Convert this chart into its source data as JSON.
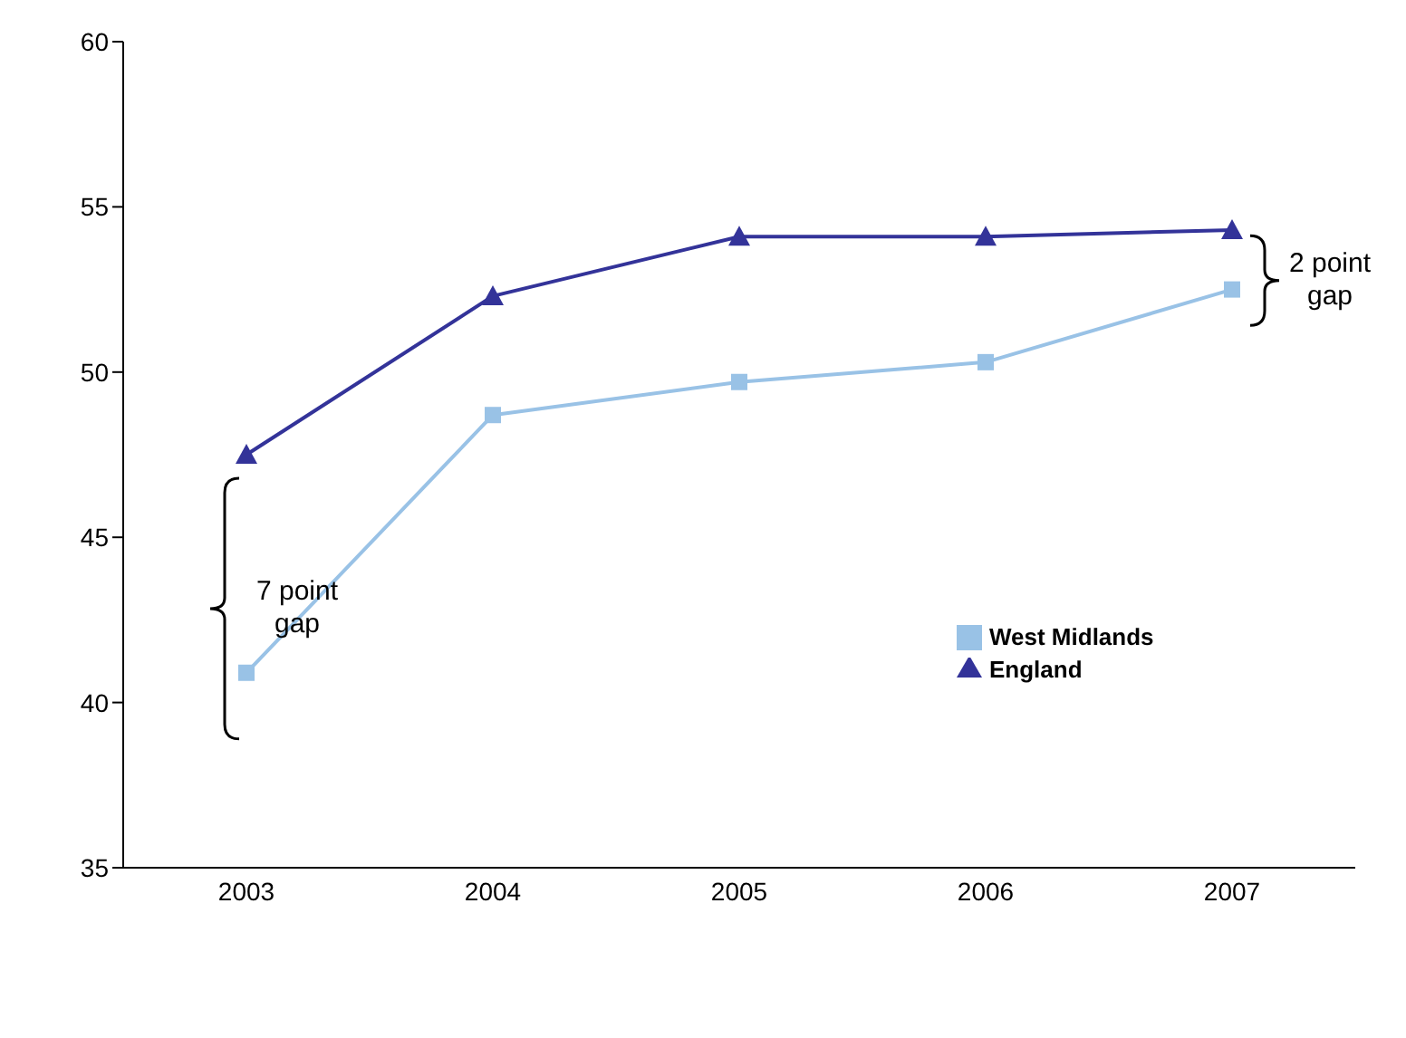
{
  "chart_data": {
    "type": "line",
    "categories": [
      "2003",
      "2004",
      "2005",
      "2006",
      "2007"
    ],
    "series": [
      {
        "name": "West Midlands",
        "color": "#99c2e6",
        "marker": "square",
        "values": [
          40.9,
          48.7,
          49.7,
          50.3,
          52.5
        ]
      },
      {
        "name": "England",
        "color": "#333399",
        "marker": "triangle",
        "values": [
          47.5,
          52.3,
          54.1,
          54.1,
          54.3
        ]
      }
    ],
    "ylim": [
      35,
      60
    ],
    "yticks": [
      35,
      40,
      45,
      50,
      55,
      60
    ],
    "grid": false,
    "legend": "right",
    "annotations": [
      "7 point gap",
      "2 point gap"
    ]
  }
}
